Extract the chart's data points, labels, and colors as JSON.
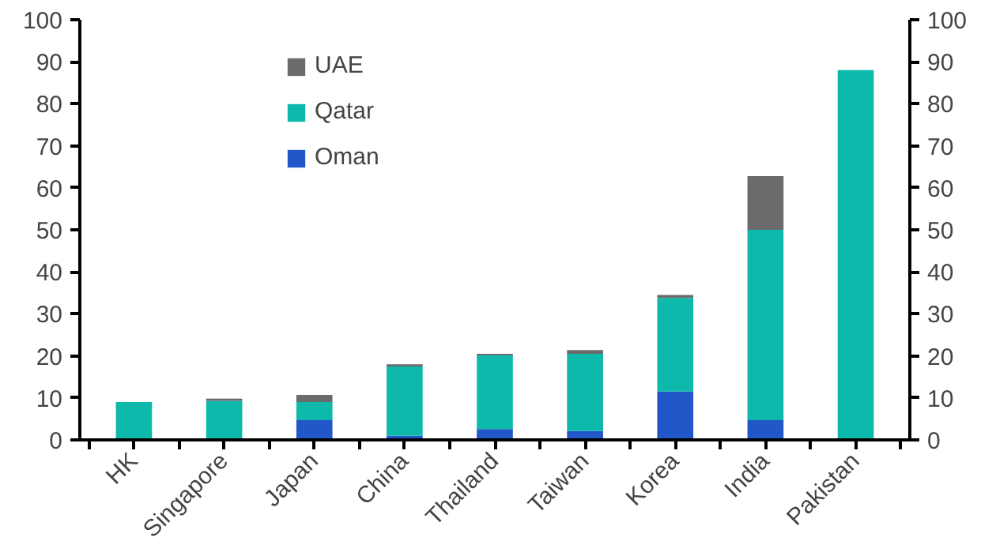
{
  "chart_data": {
    "type": "bar",
    "stacked": true,
    "categories": [
      "HK",
      "Singapore",
      "Japan",
      "China",
      "Thailand",
      "Taiwan",
      "Korea",
      "India",
      "Pakistan"
    ],
    "series": [
      {
        "name": "Oman",
        "color": "#2157c9",
        "values": [
          0,
          0,
          4.7,
          1,
          2.6,
          2.1,
          11.5,
          4.7,
          0
        ]
      },
      {
        "name": "Qatar",
        "color": "#0db9ab",
        "values": [
          9,
          9.3,
          4.3,
          16.5,
          17.5,
          18.4,
          22.3,
          45.3,
          88
        ]
      },
      {
        "name": "UAE",
        "color": "#6b6b6b",
        "values": [
          0,
          0.5,
          1.7,
          0.5,
          0.4,
          0.9,
          0.7,
          12.8,
          0
        ]
      }
    ],
    "ylim": [
      0,
      100
    ],
    "yticks": [
      0,
      10,
      20,
      30,
      40,
      50,
      60,
      70,
      80,
      90,
      100
    ],
    "y2lim": [
      0,
      100
    ],
    "y2ticks": [
      0,
      10,
      20,
      30,
      40,
      50,
      60,
      70,
      80,
      90,
      100
    ],
    "grid": false,
    "legend": "top left"
  }
}
